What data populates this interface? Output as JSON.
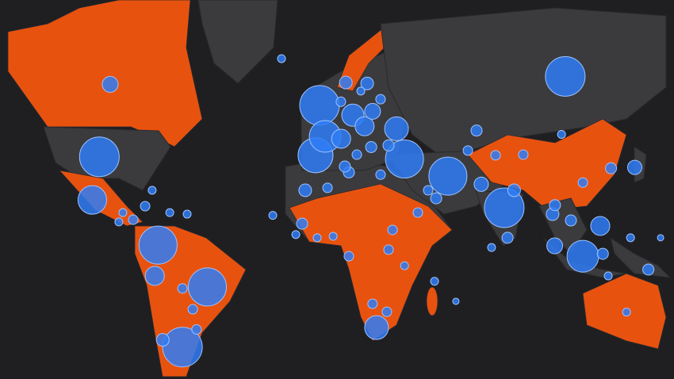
{
  "chart_data": {
    "type": "bubble-map",
    "color": "#2f7cf6",
    "lon": [
      -98,
      -101,
      -73,
      -74.4,
      -52,
      -62.6,
      -71,
      -93.4,
      100.5,
      -4.2,
      -5.9,
      -1.8,
      10,
      5,
      15,
      18.4,
      32,
      50.5,
      28.6,
      74.5,
      108,
      115.4,
      95.1,
      96,
      20.1,
      16.1,
      7,
      -20.4,
      62.7,
      64.7,
      120,
      130.1,
      8.3,
      -10.3,
      -0.8,
      -11.6,
      8.3,
      26.9,
      45.5,
      37.7,
      78.7,
      75.9,
      102.9,
      98.9,
      126.6,
      141.1,
      44.8,
      53.9,
      25.2,
      32,
      18.4,
      24.5,
      -83.6,
      -88,
      -60.6,
      -68,
      -24.1,
      -14.3,
      -5.2,
      1.6,
      -62.6,
      -58.2,
      -56.6,
      -75.5,
      -78.5,
      -89.7,
      21.8,
      4.9,
      13.4,
      25.2,
      17.8,
      11.7,
      6.6,
      21.8,
      42.1,
      59,
      70.8,
      82.6,
      108,
      135.9,
      118.8,
      116.5,
      128.3,
      69.1,
      96.1
    ],
    "lat": [
      38.4,
      23.2,
      5.2,
      -7.5,
      -12,
      -34.6,
      -32.1,
      58,
      59.7,
      53.1,
      38.9,
      44.7,
      50.6,
      44,
      47.6,
      51.6,
      37.7,
      31.9,
      46.9,
      20.2,
      0.6,
      13,
      17.7,
      4.9,
      -27.7,
      58.2,
      58.4,
      63.2,
      46.4,
      29,
      34.6,
      34.9,
      33.2,
      26.8,
      27.7,
      13.9,
      0.6,
      11.4,
      23.8,
      18.3,
      26.8,
      8.2,
      15.2,
      45.3,
      -21.9,
      8.2,
      -9.7,
      -17.7,
      3.3,
      -3.3,
      -18.7,
      -21.8,
      15.5,
      18.3,
      17.7,
      18.3,
      17.2,
      9.5,
      8.2,
      8.8,
      -12.6,
      -20.8,
      -28.4,
      26.8,
      20.8,
      14.6,
      54.6,
      54,
      56.5,
      42,
      41.5,
      39.1,
      35.2,
      32.4,
      26.8,
      40.4,
      38.9,
      39.1,
      29.6,
      -4.9,
      -7.5,
      1.6,
      8.2,
      4.2,
      21.2
    ],
    "size": [
      625,
      324,
      576,
      144,
      576,
      625,
      64,
      100,
      625,
      625,
      484,
      400,
      196,
      144,
      144,
      100,
      576,
      576,
      225,
      625,
      400,
      144,
      64,
      100,
      225,
      64,
      64,
      25,
      49,
      81,
      49,
      81,
      49,
      64,
      36,
      49,
      36,
      36,
      49,
      36,
      64,
      49,
      49,
      25,
      25,
      16,
      25,
      16,
      36,
      25,
      36,
      36,
      36,
      25,
      25,
      25,
      25,
      25,
      25,
      25,
      36,
      36,
      36,
      25,
      36,
      25,
      36,
      36,
      25,
      49,
      49,
      36,
      49,
      36,
      36,
      36,
      36,
      36,
      36,
      49,
      25,
      49,
      25,
      25,
      49
    ]
  }
}
